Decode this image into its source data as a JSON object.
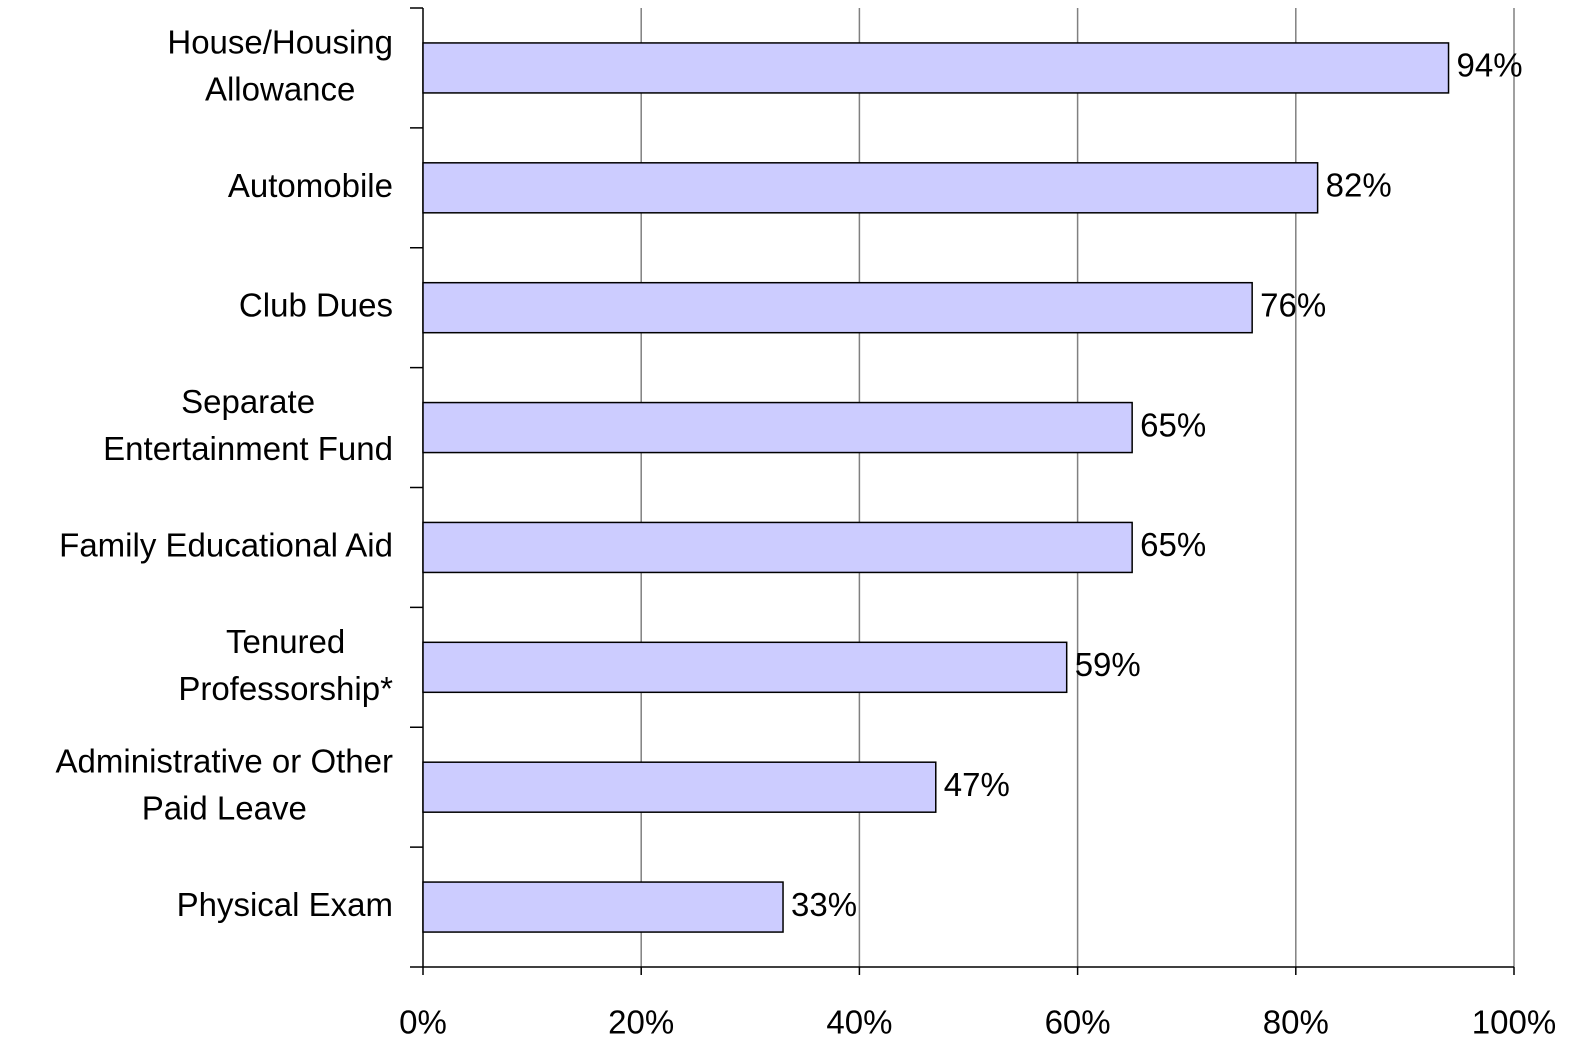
{
  "chart_data": {
    "type": "bar",
    "orientation": "horizontal",
    "categories": [
      "House/Housing\nAllowance",
      "Automobile",
      "Club Dues",
      "Separate\nEntertainment Fund",
      "Family Educational Aid",
      "Tenured\nProfessorship*",
      "Administrative or Other\nPaid Leave",
      "Physical Exam"
    ],
    "values": [
      94,
      82,
      76,
      65,
      65,
      59,
      47,
      33
    ],
    "value_labels": [
      "94%",
      "82%",
      "76%",
      "65%",
      "65%",
      "59%",
      "47%",
      "33%"
    ],
    "color": "#ccccff",
    "xlim": [
      0,
      100
    ],
    "xticks": [
      {
        "value": 0,
        "label": "0%"
      },
      {
        "value": 20,
        "label": "20%"
      },
      {
        "value": 40,
        "label": "40%"
      },
      {
        "value": 60,
        "label": "60%"
      },
      {
        "value": 80,
        "label": "80%"
      },
      {
        "value": 100,
        "label": "100%"
      }
    ],
    "grid": true
  }
}
